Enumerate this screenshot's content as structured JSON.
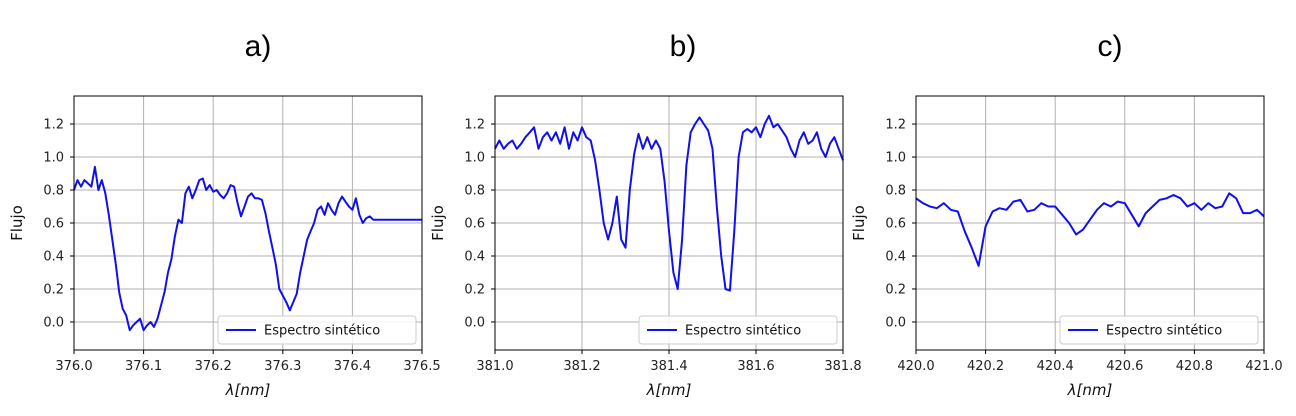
{
  "chart_data": [
    {
      "type": "line",
      "panel_label": "a)",
      "xlabel": "λ[nm]",
      "ylabel": "Flujo",
      "xlim": [
        376.0,
        376.5
      ],
      "ylim": [
        -0.17,
        1.37
      ],
      "xticks": [
        376.0,
        376.1,
        376.2,
        376.3,
        376.4,
        376.5
      ],
      "xtick_labels": [
        "376.0",
        "376.1",
        "376.2",
        "376.3",
        "376.4",
        "376.5"
      ],
      "yticks": [
        0.0,
        0.2,
        0.4,
        0.6,
        0.8,
        1.0,
        1.2
      ],
      "ytick_labels": [
        "0.0",
        "0.2",
        "0.4",
        "0.6",
        "0.8",
        "1.0",
        "1.2"
      ],
      "grid": true,
      "legend": "lower-right",
      "color": "#1010ee",
      "series": [
        {
          "name": "Espectro sintético",
          "x": [
            376.0,
            376.005,
            376.01,
            376.015,
            376.02,
            376.025,
            376.03,
            376.035,
            376.04,
            376.045,
            376.05,
            376.055,
            376.06,
            376.065,
            376.07,
            376.075,
            376.08,
            376.085,
            376.09,
            376.095,
            376.1,
            376.105,
            376.11,
            376.115,
            376.12,
            376.125,
            376.13,
            376.135,
            376.14,
            376.145,
            376.15,
            376.155,
            376.16,
            376.165,
            376.17,
            376.175,
            376.18,
            376.185,
            376.19,
            376.195,
            376.2,
            376.205,
            376.21,
            376.215,
            376.22,
            376.225,
            376.23,
            376.235,
            376.24,
            376.245,
            376.25,
            376.255,
            376.26,
            376.265,
            376.27,
            376.275,
            376.28,
            376.285,
            376.29,
            376.295,
            376.3,
            376.305,
            376.31,
            376.315,
            376.32,
            376.325,
            376.33,
            376.335,
            376.34,
            376.345,
            376.35,
            376.355,
            376.36,
            376.365,
            376.37,
            376.375,
            376.38,
            376.385,
            376.39,
            376.395,
            376.4,
            376.405,
            376.41,
            376.415,
            376.42,
            376.425,
            376.43,
            376.435,
            376.44,
            376.445,
            376.45,
            376.455,
            376.46,
            376.465,
            376.47,
            376.475,
            376.48,
            376.485,
            376.49,
            376.495,
            376.5
          ],
          "values": [
            0.8,
            0.86,
            0.82,
            0.86,
            0.84,
            0.82,
            0.94,
            0.8,
            0.86,
            0.78,
            0.65,
            0.5,
            0.35,
            0.18,
            0.08,
            0.04,
            -0.05,
            -0.02,
            0.0,
            0.02,
            -0.05,
            -0.02,
            0.0,
            -0.03,
            0.02,
            0.1,
            0.18,
            0.3,
            0.38,
            0.52,
            0.62,
            0.6,
            0.78,
            0.82,
            0.75,
            0.8,
            0.86,
            0.87,
            0.8,
            0.83,
            0.79,
            0.8,
            0.77,
            0.75,
            0.78,
            0.83,
            0.82,
            0.72,
            0.64,
            0.7,
            0.76,
            0.78,
            0.75,
            0.75,
            0.74,
            0.66,
            0.55,
            0.45,
            0.35,
            0.2,
            0.16,
            0.12,
            0.07,
            0.12,
            0.17,
            0.3,
            0.4,
            0.5,
            0.55,
            0.6,
            0.68,
            0.7,
            0.65,
            0.72,
            0.68,
            0.65,
            0.72,
            0.76,
            0.73,
            0.7,
            0.68,
            0.75,
            0.65,
            0.6,
            0.63,
            0.64,
            0.62,
            0.62,
            0.62,
            0.62,
            0.62,
            0.62,
            0.62,
            0.62,
            0.62,
            0.62,
            0.62,
            0.62,
            0.62,
            0.62,
            0.62
          ]
        }
      ]
    },
    {
      "type": "line",
      "panel_label": "b)",
      "xlabel": "λ[nm]",
      "ylabel": "Flujo",
      "xlim": [
        381.0,
        381.8
      ],
      "ylim": [
        -0.17,
        1.37
      ],
      "xticks": [
        381.0,
        381.2,
        381.4,
        381.6,
        381.8
      ],
      "xtick_labels": [
        "381.0",
        "381.2",
        "381.4",
        "381.6",
        "381.8"
      ],
      "yticks": [
        0.0,
        0.2,
        0.4,
        0.6,
        0.8,
        1.0,
        1.2
      ],
      "ytick_labels": [
        "0.0",
        "0.2",
        "0.4",
        "0.6",
        "0.8",
        "1.0",
        "1.2"
      ],
      "grid": true,
      "legend": "lower-right",
      "color": "#1010ee",
      "series": [
        {
          "name": "Espectro sintético",
          "x": [
            381.0,
            381.01,
            381.02,
            381.03,
            381.04,
            381.05,
            381.06,
            381.07,
            381.08,
            381.09,
            381.1,
            381.11,
            381.12,
            381.13,
            381.14,
            381.15,
            381.16,
            381.17,
            381.18,
            381.19,
            381.2,
            381.21,
            381.22,
            381.23,
            381.24,
            381.25,
            381.26,
            381.27,
            381.28,
            381.29,
            381.3,
            381.31,
            381.32,
            381.33,
            381.34,
            381.35,
            381.36,
            381.37,
            381.38,
            381.39,
            381.4,
            381.41,
            381.42,
            381.43,
            381.44,
            381.45,
            381.46,
            381.47,
            381.48,
            381.49,
            381.5,
            381.51,
            381.52,
            381.53,
            381.54,
            381.55,
            381.56,
            381.57,
            381.58,
            381.59,
            381.6,
            381.61,
            381.62,
            381.63,
            381.64,
            381.65,
            381.66,
            381.67,
            381.68,
            381.69,
            381.7,
            381.71,
            381.72,
            381.73,
            381.74,
            381.75,
            381.76,
            381.77,
            381.78,
            381.79,
            381.8
          ],
          "values": [
            1.05,
            1.1,
            1.05,
            1.08,
            1.1,
            1.05,
            1.08,
            1.12,
            1.15,
            1.18,
            1.05,
            1.12,
            1.15,
            1.1,
            1.15,
            1.08,
            1.18,
            1.05,
            1.15,
            1.1,
            1.18,
            1.12,
            1.1,
            0.98,
            0.8,
            0.6,
            0.5,
            0.6,
            0.76,
            0.5,
            0.45,
            0.8,
            1.02,
            1.14,
            1.05,
            1.12,
            1.05,
            1.1,
            1.05,
            0.85,
            0.55,
            0.3,
            0.2,
            0.5,
            0.95,
            1.15,
            1.2,
            1.24,
            1.2,
            1.16,
            1.05,
            0.7,
            0.4,
            0.2,
            0.19,
            0.55,
            1.0,
            1.15,
            1.17,
            1.15,
            1.18,
            1.12,
            1.2,
            1.25,
            1.18,
            1.2,
            1.16,
            1.12,
            1.05,
            1.0,
            1.1,
            1.15,
            1.08,
            1.1,
            1.15,
            1.05,
            1.0,
            1.08,
            1.12,
            1.05,
            0.98
          ]
        }
      ]
    },
    {
      "type": "line",
      "panel_label": "c)",
      "xlabel": "λ[nm]",
      "ylabel": "Flujo",
      "xlim": [
        420.0,
        421.0
      ],
      "ylim": [
        -0.17,
        1.37
      ],
      "xticks": [
        420.0,
        420.2,
        420.4,
        420.6,
        420.8,
        421.0
      ],
      "xtick_labels": [
        "420.0",
        "420.2",
        "420.4",
        "420.6",
        "420.8",
        "421.0"
      ],
      "yticks": [
        0.0,
        0.2,
        0.4,
        0.6,
        0.8,
        1.0,
        1.2
      ],
      "ytick_labels": [
        "0.0",
        "0.2",
        "0.4",
        "0.6",
        "0.8",
        "1.0",
        "1.2"
      ],
      "grid": true,
      "legend": "lower-right",
      "color": "#1010ee",
      "series": [
        {
          "name": "Espectro sintético",
          "x": [
            420.0,
            420.02,
            420.04,
            420.06,
            420.08,
            420.1,
            420.12,
            420.14,
            420.16,
            420.18,
            420.2,
            420.22,
            420.24,
            420.26,
            420.28,
            420.3,
            420.32,
            420.34,
            420.36,
            420.38,
            420.4,
            420.42,
            420.44,
            420.46,
            420.48,
            420.5,
            420.52,
            420.54,
            420.56,
            420.58,
            420.6,
            420.62,
            420.64,
            420.66,
            420.68,
            420.7,
            420.72,
            420.74,
            420.76,
            420.78,
            420.8,
            420.82,
            420.84,
            420.86,
            420.88,
            420.9,
            420.92,
            420.94,
            420.96,
            420.98,
            421.0
          ],
          "values": [
            0.75,
            0.72,
            0.7,
            0.69,
            0.72,
            0.68,
            0.67,
            0.55,
            0.45,
            0.34,
            0.58,
            0.67,
            0.69,
            0.68,
            0.73,
            0.74,
            0.67,
            0.68,
            0.72,
            0.7,
            0.7,
            0.65,
            0.6,
            0.53,
            0.56,
            0.62,
            0.68,
            0.72,
            0.7,
            0.73,
            0.72,
            0.65,
            0.58,
            0.66,
            0.7,
            0.74,
            0.75,
            0.77,
            0.75,
            0.7,
            0.72,
            0.68,
            0.72,
            0.69,
            0.7,
            0.78,
            0.75,
            0.66,
            0.66,
            0.68,
            0.64
          ]
        }
      ]
    }
  ]
}
